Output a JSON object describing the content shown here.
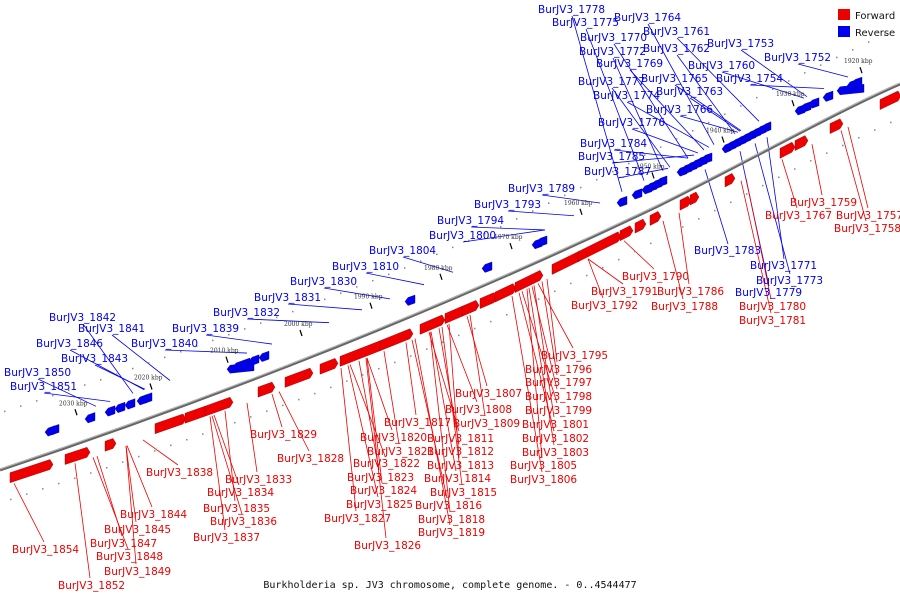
{
  "caption": "Burkholderia sp. JV3 chromosome, complete genome. - 0..4544477",
  "legend": {
    "forward_label": "Forward",
    "reverse_label": "Reverse",
    "forward_color": "#ee0000",
    "reverse_color": "#0000ee"
  },
  "scale_ticks": [
    "1920 kbp",
    "1930 kbp",
    "1940 kbp",
    "1950 kbp",
    "1960 kbp",
    "1970 kbp",
    "1980 kbp",
    "1990 kbp",
    "2000 kbp",
    "2010 kbp",
    "2020 kbp",
    "2030 kbp"
  ],
  "reverse_labels": [
    "BurJV3_1778",
    "BurJV3_1775",
    "BurJV3_1764",
    "BurJV3_1770",
    "BurJV3_1761",
    "BurJV3_1772",
    "BurJV3_1762",
    "BurJV3_1753",
    "BurJV3_1769",
    "BurJV3_1760",
    "BurJV3_1752",
    "BurJV3_1777",
    "BurJV3_1765",
    "BurJV3_1754",
    "BurJV3_1774",
    "BurJV3_1763",
    "BurJV3_1766",
    "BurJV3_1776",
    "BurJV3_1784",
    "BurJV3_1785",
    "BurJV3_1787",
    "BurJV3_1789",
    "BurJV3_1793",
    "BurJV3_1794",
    "BurJV3_1800",
    "BurJV3_1804",
    "BurJV3_1810",
    "BurJV3_1830",
    "BurJV3_1831",
    "BurJV3_1832",
    "BurJV3_1842",
    "BurJV3_1841",
    "BurJV3_1839",
    "BurJV3_1846",
    "BurJV3_1840",
    "BurJV3_1843",
    "BurJV3_1850",
    "BurJV3_1851",
    "BurJV3_1783",
    "BurJV3_1771",
    "BurJV3_1773",
    "BurJV3_1779"
  ],
  "forward_labels": [
    "BurJV3_1759",
    "BurJV3_1767",
    "BurJV3_1757",
    "BurJV3_1758",
    "BurJV3_1790",
    "BurJV3_1791",
    "BurJV3_1786",
    "BurJV3_1792",
    "BurJV3_1788",
    "BurJV3_1780",
    "BurJV3_1781",
    "BurJV3_1795",
    "BurJV3_1796",
    "BurJV3_1797",
    "BurJV3_1807",
    "BurJV3_1798",
    "BurJV3_1808",
    "BurJV3_1799",
    "BurJV3_1817",
    "BurJV3_1809",
    "BurJV3_1801",
    "BurJV3_1820",
    "BurJV3_1811",
    "BurJV3_1802",
    "BurJV3_1829",
    "BurJV3_1821",
    "BurJV3_1812",
    "BurJV3_1803",
    "BurJV3_1828",
    "BurJV3_1822",
    "BurJV3_1813",
    "BurJV3_1805",
    "BurJV3_1823",
    "BurJV3_1814",
    "BurJV3_1806",
    "BurJV3_1838",
    "BurJV3_1833",
    "BurJV3_1824",
    "BurJV3_1815",
    "BurJV3_1834",
    "BurJV3_1825",
    "BurJV3_1816",
    "BurJV3_1835",
    "BurJV3_1827",
    "BurJV3_1818",
    "BurJV3_1844",
    "BurJV3_1836",
    "BurJV3_1819",
    "BurJV3_1845",
    "BurJV3_1837",
    "BurJV3_1826",
    "BurJV3_1847",
    "BurJV3_1854",
    "BurJV3_1848",
    "BurJV3_1849",
    "BurJV3_1852"
  ]
}
